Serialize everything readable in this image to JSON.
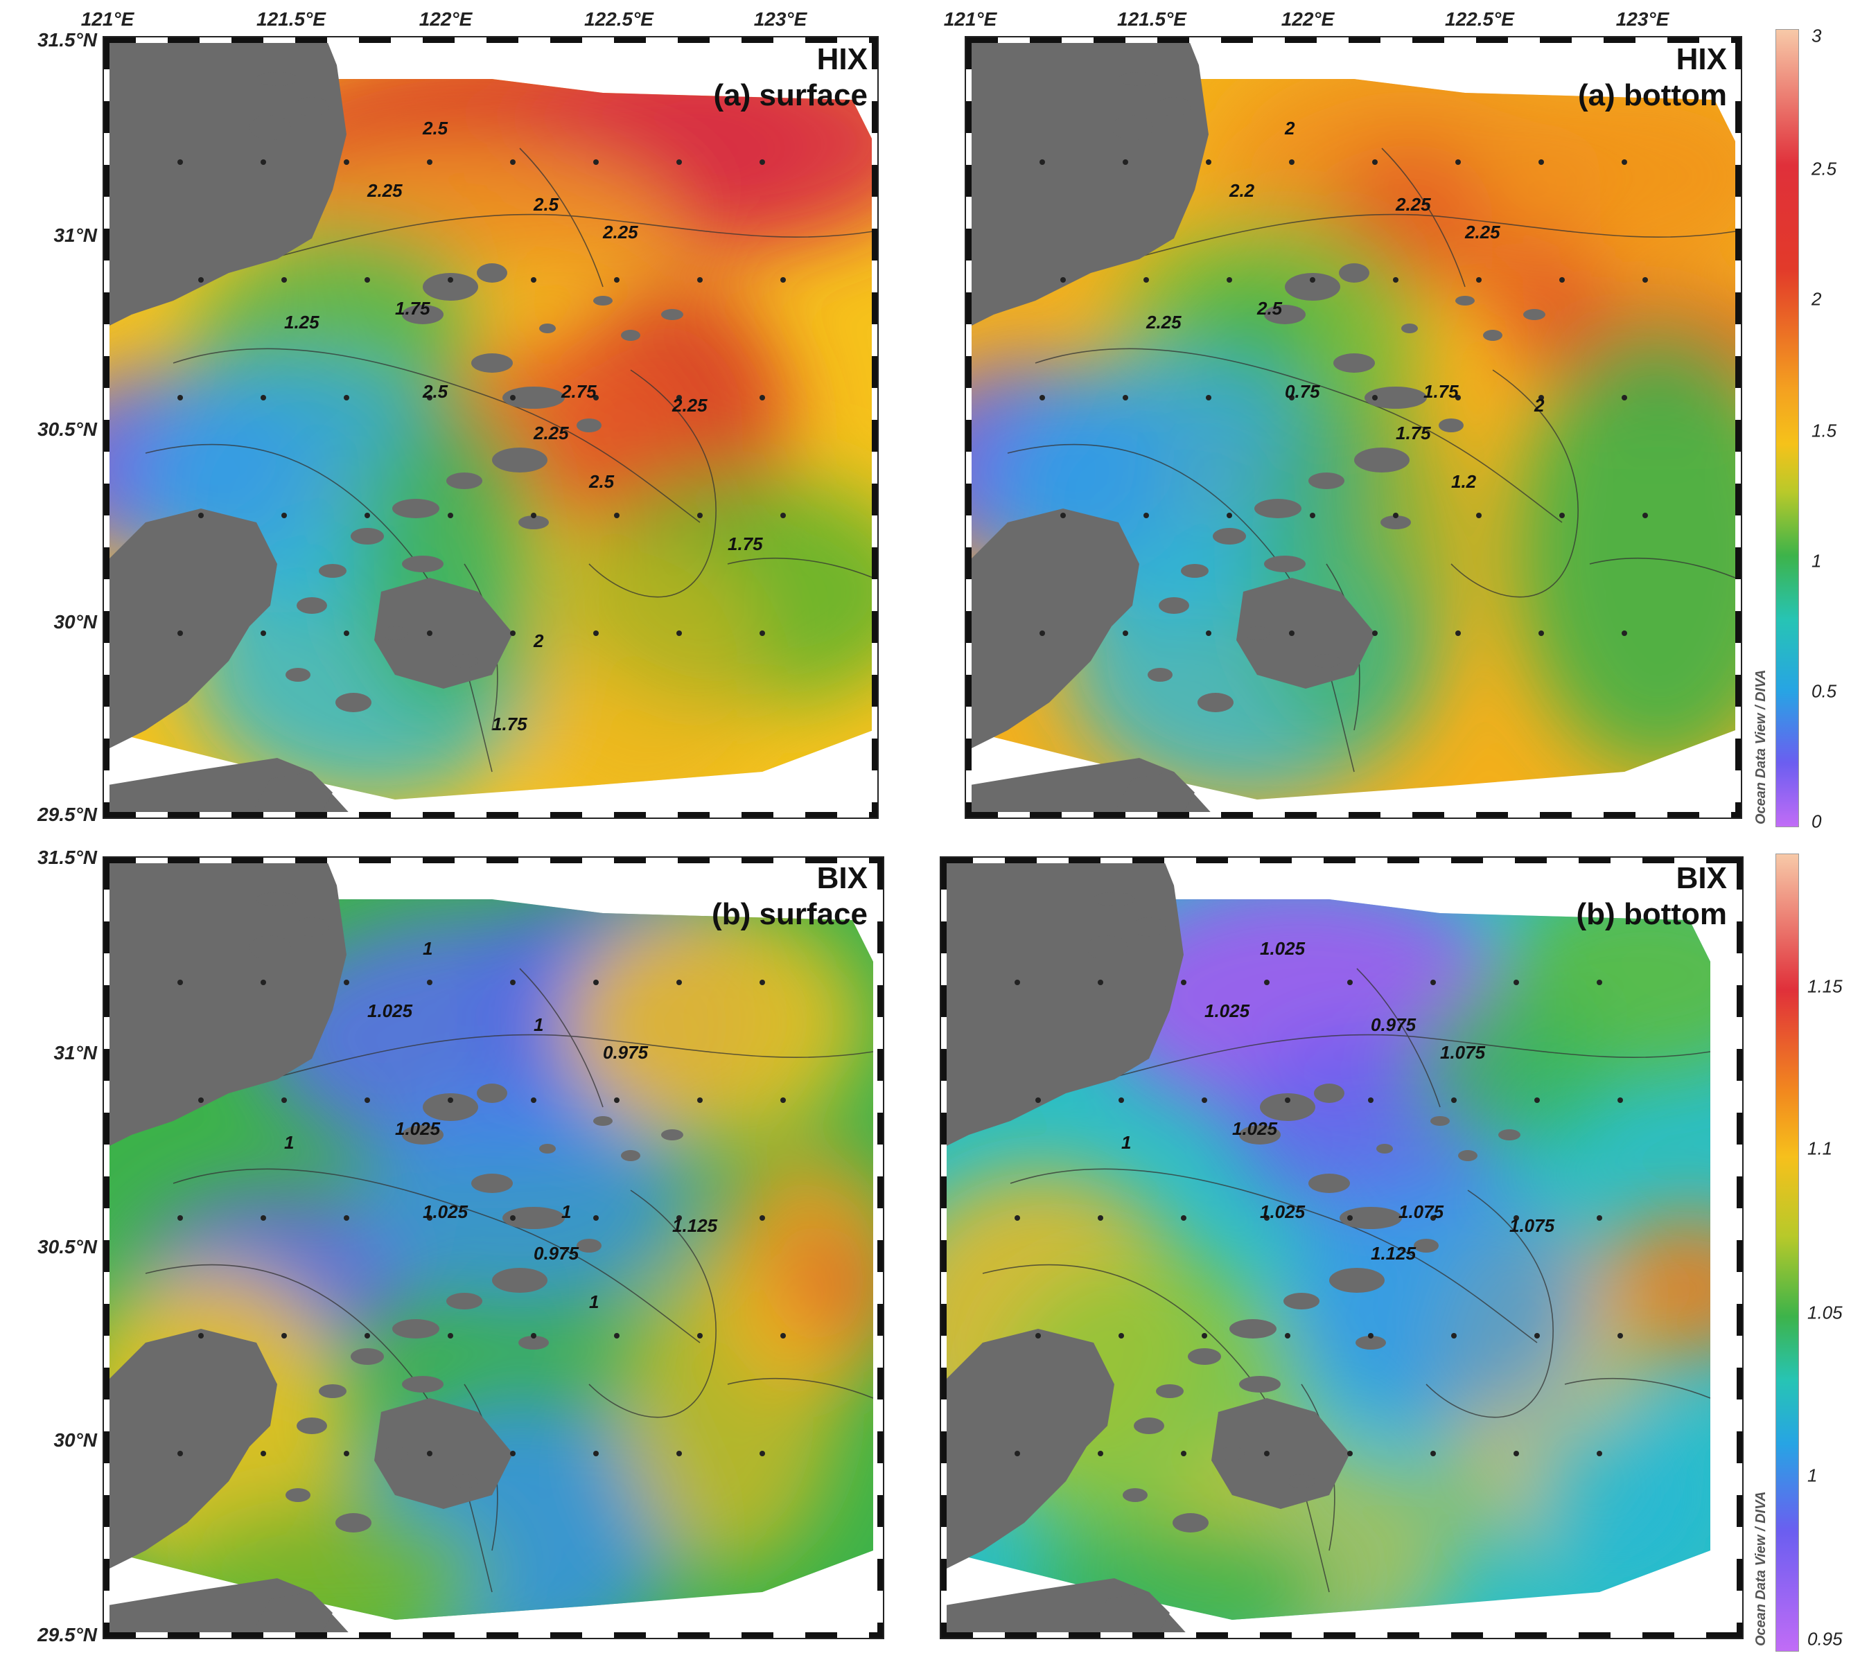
{
  "lon_labels": [
    "121°E",
    "121.5°E",
    "122°E",
    "122.5°E",
    "123°E"
  ],
  "lat_labels": [
    "31.5°N",
    "31°N",
    "30.5°N",
    "30°N",
    "29.5°N"
  ],
  "panels": [
    {
      "id": "hix-surface",
      "line1": "HIX",
      "line2": "(a) surface",
      "scale": "hix",
      "contour_labels": [
        "2.5",
        "2.25",
        "2.5",
        "2.25",
        "1.75",
        "1.25",
        "2.5",
        "2.75",
        "2.25",
        "2.25",
        "2.5",
        "1.75",
        "2",
        "1.75"
      ]
    },
    {
      "id": "hix-bottom",
      "line1": "HIX",
      "line2": "(a) bottom",
      "scale": "hix",
      "contour_labels": [
        "2",
        "2.2",
        "2.25",
        "2.25",
        "2.5",
        "2.25",
        "0.75",
        "1.75",
        "1.75",
        "2",
        "1.2"
      ]
    },
    {
      "id": "bix-surface",
      "line1": "BIX",
      "line2": "(b) surface",
      "scale": "bix",
      "contour_labels": [
        "1",
        "1.025",
        "1",
        "0.975",
        "1.025",
        "1",
        "1.025",
        "1",
        "0.975",
        "1.125",
        "1"
      ]
    },
    {
      "id": "bix-bottom",
      "line1": "BIX",
      "line2": "(b) bottom",
      "scale": "bix",
      "contour_labels": [
        "1.025",
        "1.025",
        "0.975",
        "1.075",
        "1.025",
        "1",
        "1.025",
        "1.075",
        "1.125",
        "1.075"
      ]
    }
  ],
  "colorbars": {
    "hix": {
      "ticks": [
        "3",
        "2.5",
        "2",
        "1.5",
        "1",
        "0.5",
        "0"
      ],
      "min": 0,
      "max": 3
    },
    "bix": {
      "ticks": [
        "1.15",
        "1.1",
        "1.05",
        "1",
        "0.95"
      ],
      "min": 0.95,
      "max": 1.19
    }
  },
  "watermark": "Ocean Data View / DIVA",
  "colors": {
    "land": "#6b6b6b",
    "frame": "#222222"
  }
}
